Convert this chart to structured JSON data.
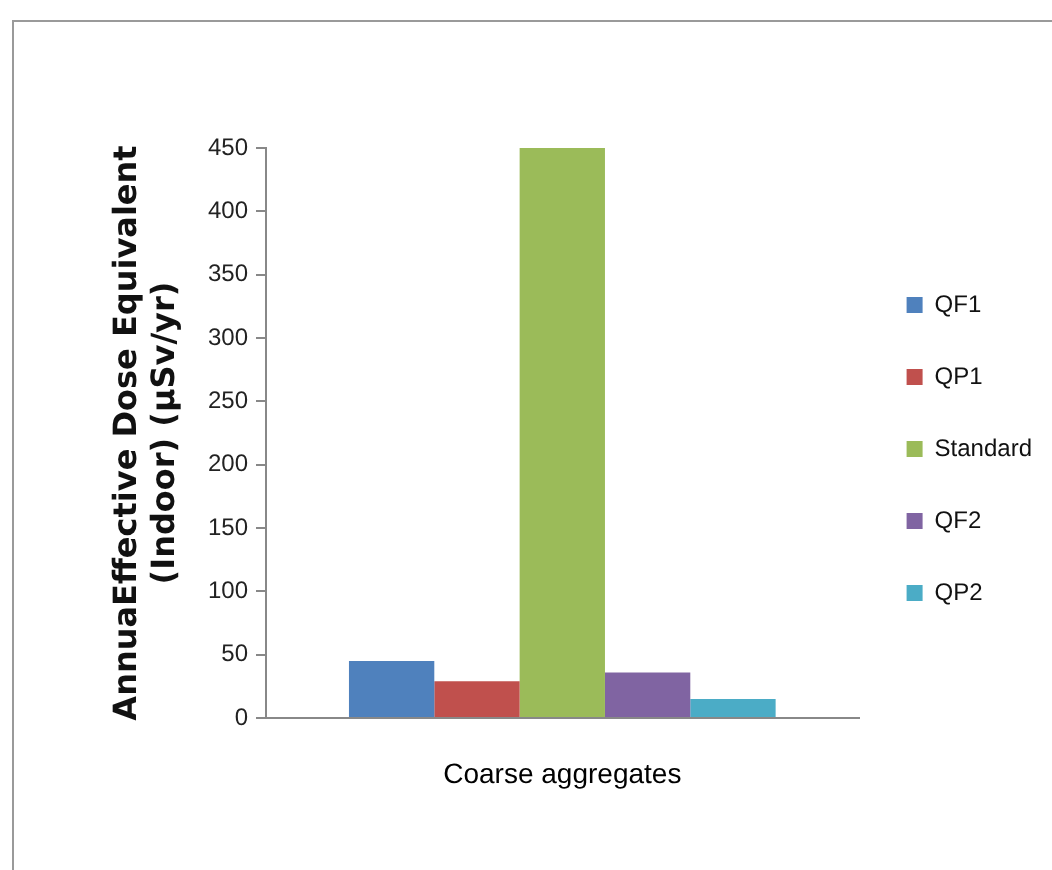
{
  "chart_data": {
    "type": "bar",
    "ylabel": "AnnuaEffective Dose Equivalent (Indoor) (µSv/yr)",
    "categories": [
      "Coarse aggregates"
    ],
    "series": [
      {
        "name": "QF1",
        "color": "#4f81bd",
        "values": [
          45
        ]
      },
      {
        "name": "QP1",
        "color": "#c0504d",
        "values": [
          29
        ]
      },
      {
        "name": "Standard",
        "color": "#9bbb59",
        "values": [
          450
        ]
      },
      {
        "name": "QF2",
        "color": "#8064a2",
        "values": [
          36
        ]
      },
      {
        "name": "QP2",
        "color": "#4bacc6",
        "values": [
          15
        ]
      }
    ],
    "ylim": [
      0,
      450
    ],
    "yticks": [
      0,
      50,
      100,
      150,
      200,
      250,
      300,
      350,
      400,
      450
    ],
    "legend": "right"
  }
}
